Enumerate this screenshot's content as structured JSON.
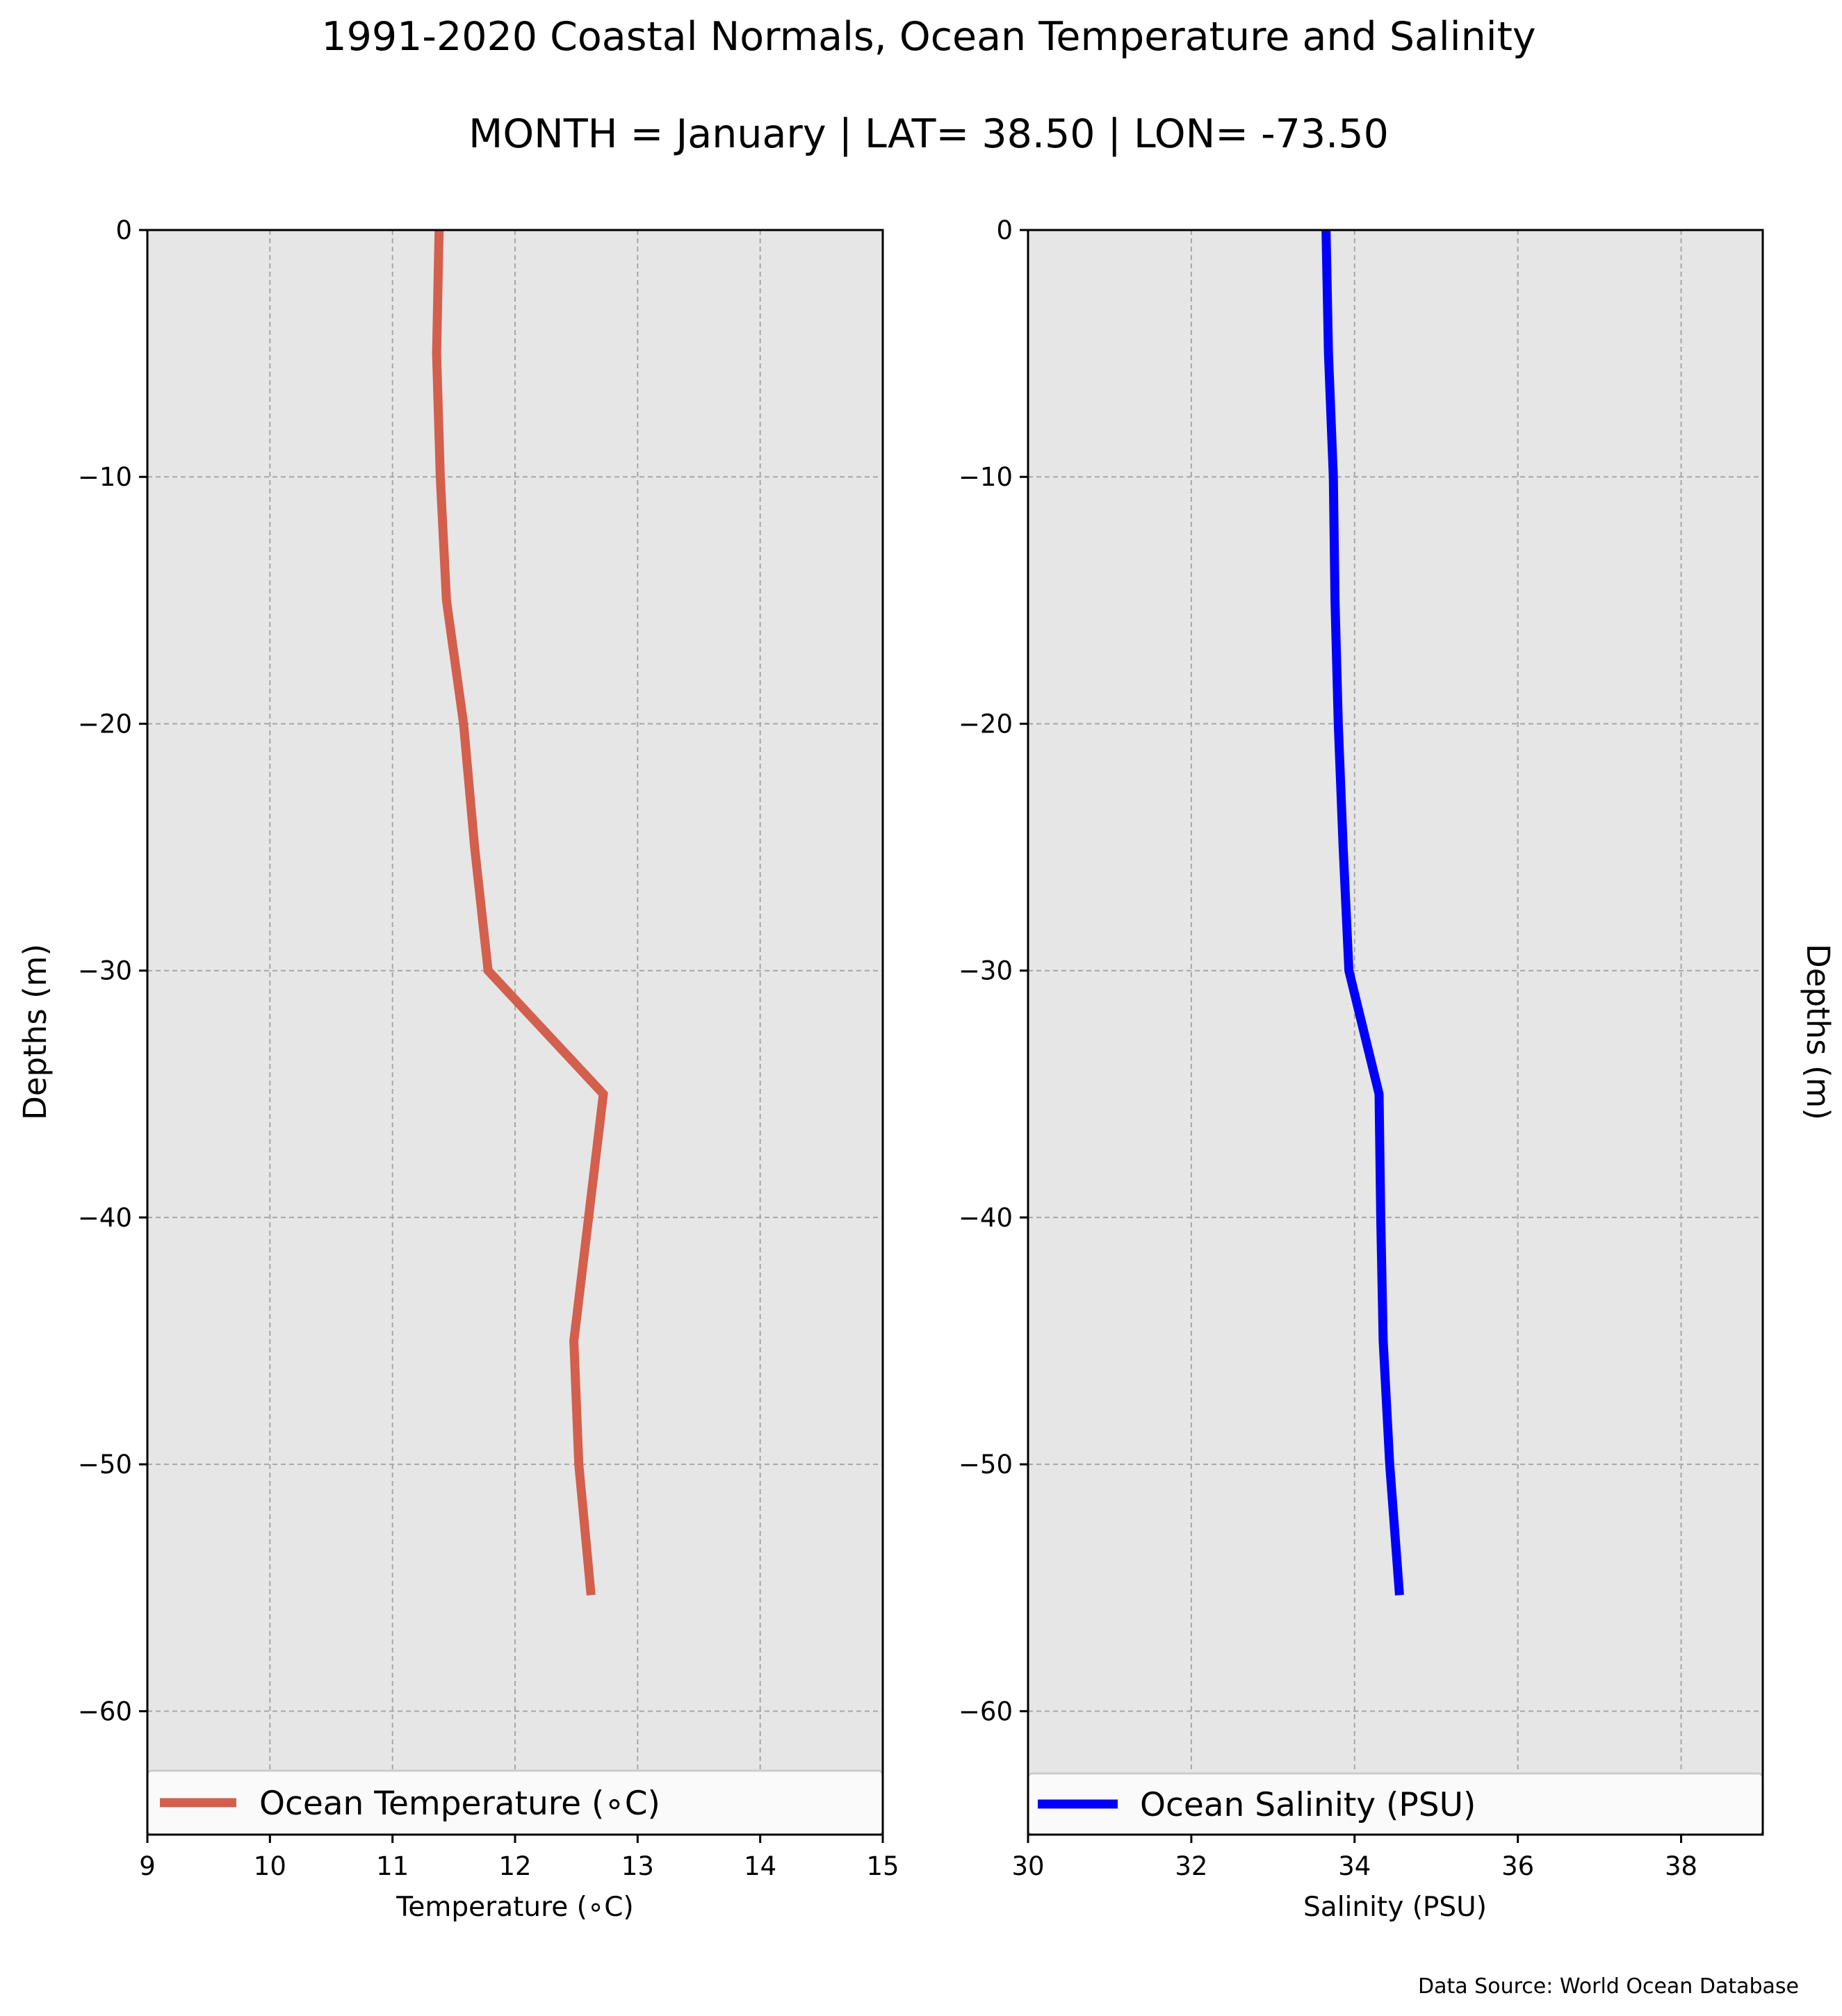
{
  "figure": {
    "title": "1991-2020 Coastal Normals, Ocean Temperature and Salinity",
    "subtitle": "MONTH = January | LAT= 38.50 | LON= -73.50",
    "source": "Data Source: World Ocean Database",
    "background": "#ffffff",
    "plot_background": "#e6e6e6"
  },
  "chart_data": [
    {
      "type": "line",
      "xlabel": "Temperature ($^\\circ$C)",
      "xlabel_display": "Temperature (∘C)",
      "ylabel": "Depths (m)",
      "xlim": [
        9,
        15
      ],
      "ylim": [
        -65,
        0
      ],
      "xticks": [
        9,
        10,
        11,
        12,
        13,
        14,
        15
      ],
      "xtick_labels": [
        "9",
        "10",
        "11",
        "12",
        "13",
        "14",
        "15"
      ],
      "yticks": [
        0,
        -10,
        -20,
        -30,
        -40,
        -50,
        -60
      ],
      "ytick_labels": [
        "0",
        "−10",
        "−20",
        "−30",
        "−40",
        "−50",
        "−60"
      ],
      "grid": true,
      "legend_position": "bottom",
      "series": [
        {
          "name": "Ocean Temperature (∘C)",
          "color": "#d35f4d",
          "x": [
            11.38,
            11.36,
            11.39,
            11.44,
            11.58,
            11.67,
            11.78,
            12.72,
            12.6,
            12.48,
            12.52,
            12.62
          ],
          "y": [
            0,
            -5,
            -10,
            -15,
            -20,
            -25,
            -30,
            -35,
            -40,
            -45,
            -50,
            -55.3
          ]
        }
      ]
    },
    {
      "type": "line",
      "xlabel": "Salinity (PSU)",
      "ylabel": "Depths (m)",
      "ylabel_side": "right",
      "xlim": [
        30,
        39
      ],
      "ylim": [
        -65,
        0
      ],
      "xticks": [
        30,
        32,
        34,
        36,
        38
      ],
      "xtick_labels": [
        "30",
        "32",
        "34",
        "36",
        "38"
      ],
      "yticks": [
        0,
        -10,
        -20,
        -30,
        -40,
        -50,
        -60
      ],
      "ytick_labels": [
        "0",
        "−10",
        "−20",
        "−30",
        "−40",
        "−50",
        "−60"
      ],
      "grid": true,
      "legend_position": "bottom",
      "series": [
        {
          "name": "Ocean Salinity (PSU)",
          "color": "#0000ff",
          "x": [
            33.65,
            33.68,
            33.74,
            33.76,
            33.8,
            33.86,
            33.93,
            34.3,
            34.32,
            34.35,
            34.43,
            34.55
          ],
          "y": [
            0,
            -5,
            -10,
            -15,
            -20,
            -25,
            -30,
            -35,
            -40,
            -45,
            -50,
            -55.3
          ]
        }
      ]
    }
  ]
}
